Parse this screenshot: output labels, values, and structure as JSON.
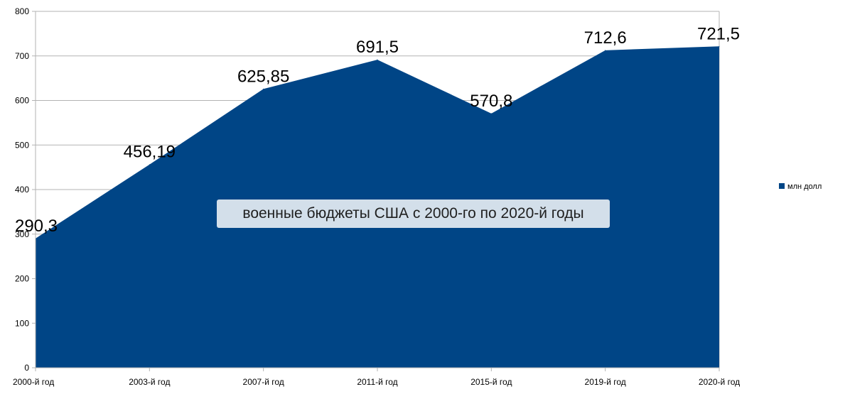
{
  "chart_data": {
    "type": "area",
    "title": "военные бюджеты США с 2000-го по 2020-й годы",
    "categories": [
      "2000-й год",
      "2003-й год",
      "2007-й год",
      "2011-й год",
      "2015-й год",
      "2019-й год",
      "2020-й год"
    ],
    "series": [
      {
        "name": "млн долл",
        "values": [
          290.3,
          456.19,
          625.85,
          691.5,
          570.8,
          712.6,
          721.5
        ],
        "labels": [
          "290,3",
          "456,19",
          "625,85",
          "691,5",
          "570,8",
          "712,6",
          "721,5"
        ],
        "color": "#004586"
      }
    ],
    "ylim": [
      0,
      800
    ],
    "yticks": [
      0,
      100,
      200,
      300,
      400,
      500,
      600,
      700,
      800
    ],
    "grid": true,
    "legend_position": "right",
    "xlabel": "",
    "ylabel": ""
  }
}
